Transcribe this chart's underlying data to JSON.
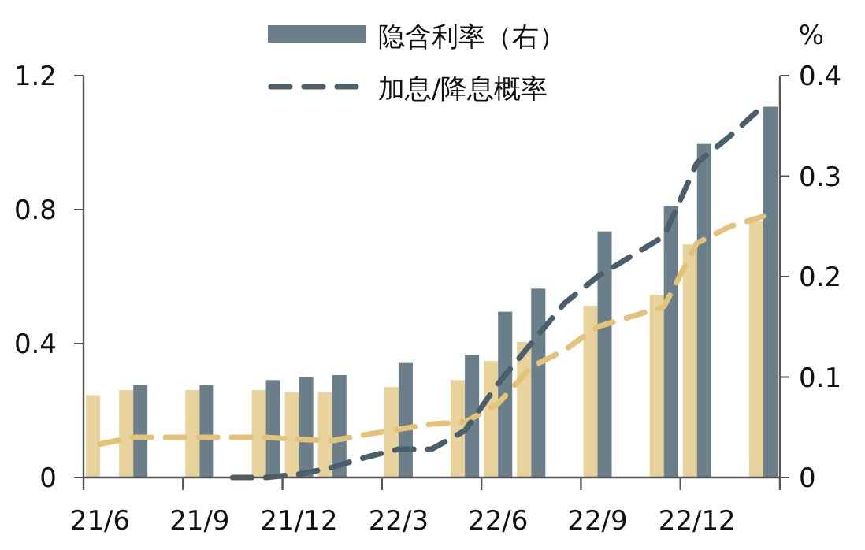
{
  "chart_data": {
    "type": "bar",
    "categories": [
      "21/6",
      null,
      null,
      "21/9",
      null,
      null,
      "21/12",
      null,
      null,
      "22/3",
      null,
      null,
      "22/6",
      null,
      null,
      "22/9",
      null,
      null,
      "22/12",
      null,
      null
    ],
    "series": [
      {
        "color": "#e8d39d",
        "axis": "y2",
        "values": [
          0.082,
          0.087,
          null,
          0.087,
          null,
          0.087,
          0.085,
          0.085,
          null,
          0.09,
          null,
          0.097,
          0.116,
          0.135,
          null,
          0.171,
          null,
          0.182,
          0.232,
          null,
          0.255
        ]
      },
      {
        "name": "隐含利率（右）",
        "color": "#6b7f8a",
        "axis": "y2",
        "values": [
          null,
          0.092,
          null,
          0.092,
          null,
          0.097,
          0.1,
          0.102,
          null,
          0.114,
          null,
          0.122,
          0.165,
          0.188,
          null,
          0.245,
          null,
          0.27,
          0.332,
          null,
          0.369
        ]
      },
      {
        "type": "line",
        "line_style": "dashed",
        "color": "#e3c27a",
        "values": [
          0.1,
          0.12,
          0.12,
          0.12,
          0.12,
          0.12,
          0.114,
          0.11,
          0.128,
          0.144,
          0.16,
          0.165,
          0.22,
          0.33,
          0.38,
          0.45,
          0.48,
          0.51,
          0.7,
          0.75,
          0.78
        ]
      },
      {
        "name": "加息/降息概率",
        "type": "line",
        "line_style": "dashed",
        "color": "#4a5e6c",
        "values": [
          null,
          null,
          null,
          null,
          0,
          0,
          0.01,
          0.03,
          0.06,
          0.085,
          0.085,
          0.14,
          0.28,
          0.4,
          0.52,
          0.6,
          0.66,
          0.72,
          0.94,
          1.02,
          1.11
        ]
      }
    ],
    "ylim": [
      0,
      1.2
    ],
    "yticks": [
      0,
      0.4,
      0.8,
      1.2
    ],
    "y2lim": [
      0,
      0.4
    ],
    "y2ticks": [
      0,
      0.1,
      0.2,
      0.3,
      0.4
    ],
    "y2label": "%",
    "legend": "top",
    "grid": false
  }
}
